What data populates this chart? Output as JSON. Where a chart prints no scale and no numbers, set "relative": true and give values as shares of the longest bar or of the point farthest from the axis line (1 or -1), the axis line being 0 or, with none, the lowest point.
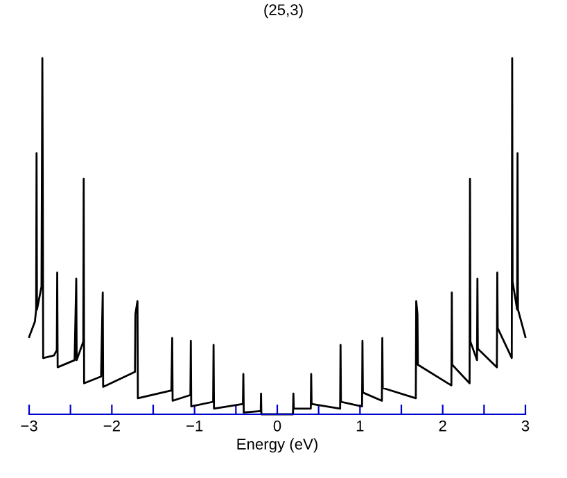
{
  "chart_data": {
    "type": "line",
    "title": "(25,3)",
    "xlabel": "Energy (eV)",
    "relative": true,
    "xlim": [
      -3,
      3
    ],
    "xticks": [
      -3,
      {
        "value": -2.5,
        "label": null
      },
      -2,
      {
        "value": -1.5,
        "label": null
      },
      -1,
      {
        "value": -0.5,
        "label": null
      },
      0,
      {
        "value": 0.5,
        "label": null
      },
      1,
      {
        "value": 1.5,
        "label": null
      },
      2,
      {
        "value": 2.5,
        "label": null
      },
      3
    ],
    "grid": false,
    "legend": false,
    "marker": "none",
    "line_style": "solid",
    "series": [
      {
        "color": "#000000",
        "x": [
          -3.0,
          -2.93,
          -2.915,
          -2.91,
          -2.905,
          -2.85,
          -2.84,
          -2.835,
          -2.83,
          -2.7,
          -2.665,
          -2.66,
          -2.655,
          -2.45,
          -2.43,
          -2.425,
          -2.345,
          -2.34,
          -2.335,
          -2.13,
          -2.11,
          -2.105,
          -1.72,
          -1.715,
          -1.69,
          -1.685,
          -1.28,
          -1.27,
          -1.265,
          -1.05,
          -1.045,
          -1.04,
          -0.775,
          -0.77,
          -0.765,
          -0.415,
          -0.41,
          -0.405,
          -0.2,
          -0.196,
          -0.192,
          0.19,
          0.195,
          0.2,
          0.405,
          0.41,
          0.415,
          0.76,
          0.765,
          0.77,
          1.025,
          1.03,
          1.035,
          1.265,
          1.27,
          1.275,
          1.675,
          1.68,
          1.695,
          1.7,
          2.105,
          2.11,
          2.115,
          2.325,
          2.33,
          2.335,
          2.415,
          2.42,
          2.425,
          2.655,
          2.66,
          2.665,
          2.835,
          2.84,
          2.845,
          2.9,
          2.905,
          2.91,
          2.95,
          3.0
        ],
        "values": [
          0.217,
          0.26,
          0.294,
          0.733,
          0.294,
          0.359,
          1.0,
          0.651,
          0.158,
          0.165,
          0.18,
          0.398,
          0.132,
          0.152,
          0.381,
          0.152,
          0.204,
          0.661,
          0.087,
          0.106,
          0.342,
          0.077,
          0.119,
          0.281,
          0.318,
          0.045,
          0.067,
          0.214,
          0.038,
          0.054,
          0.206,
          0.022,
          0.035,
          0.195,
          0.016,
          0.029,
          0.113,
          0.005,
          0.009,
          0.058,
          0,
          0,
          0.058,
          0.016,
          0.016,
          0.113,
          0.029,
          0.016,
          0.195,
          0.035,
          0.022,
          0.206,
          0.061,
          0.038,
          0.214,
          0.074,
          0.045,
          0.318,
          0.281,
          0.139,
          0.081,
          0.342,
          0.139,
          0.087,
          0.661,
          0.204,
          0.152,
          0.381,
          0.184,
          0.132,
          0.398,
          0.242,
          0.158,
          1.0,
          0.372,
          0.294,
          0.733,
          0.294,
          0.26,
          0.217
        ]
      }
    ]
  }
}
